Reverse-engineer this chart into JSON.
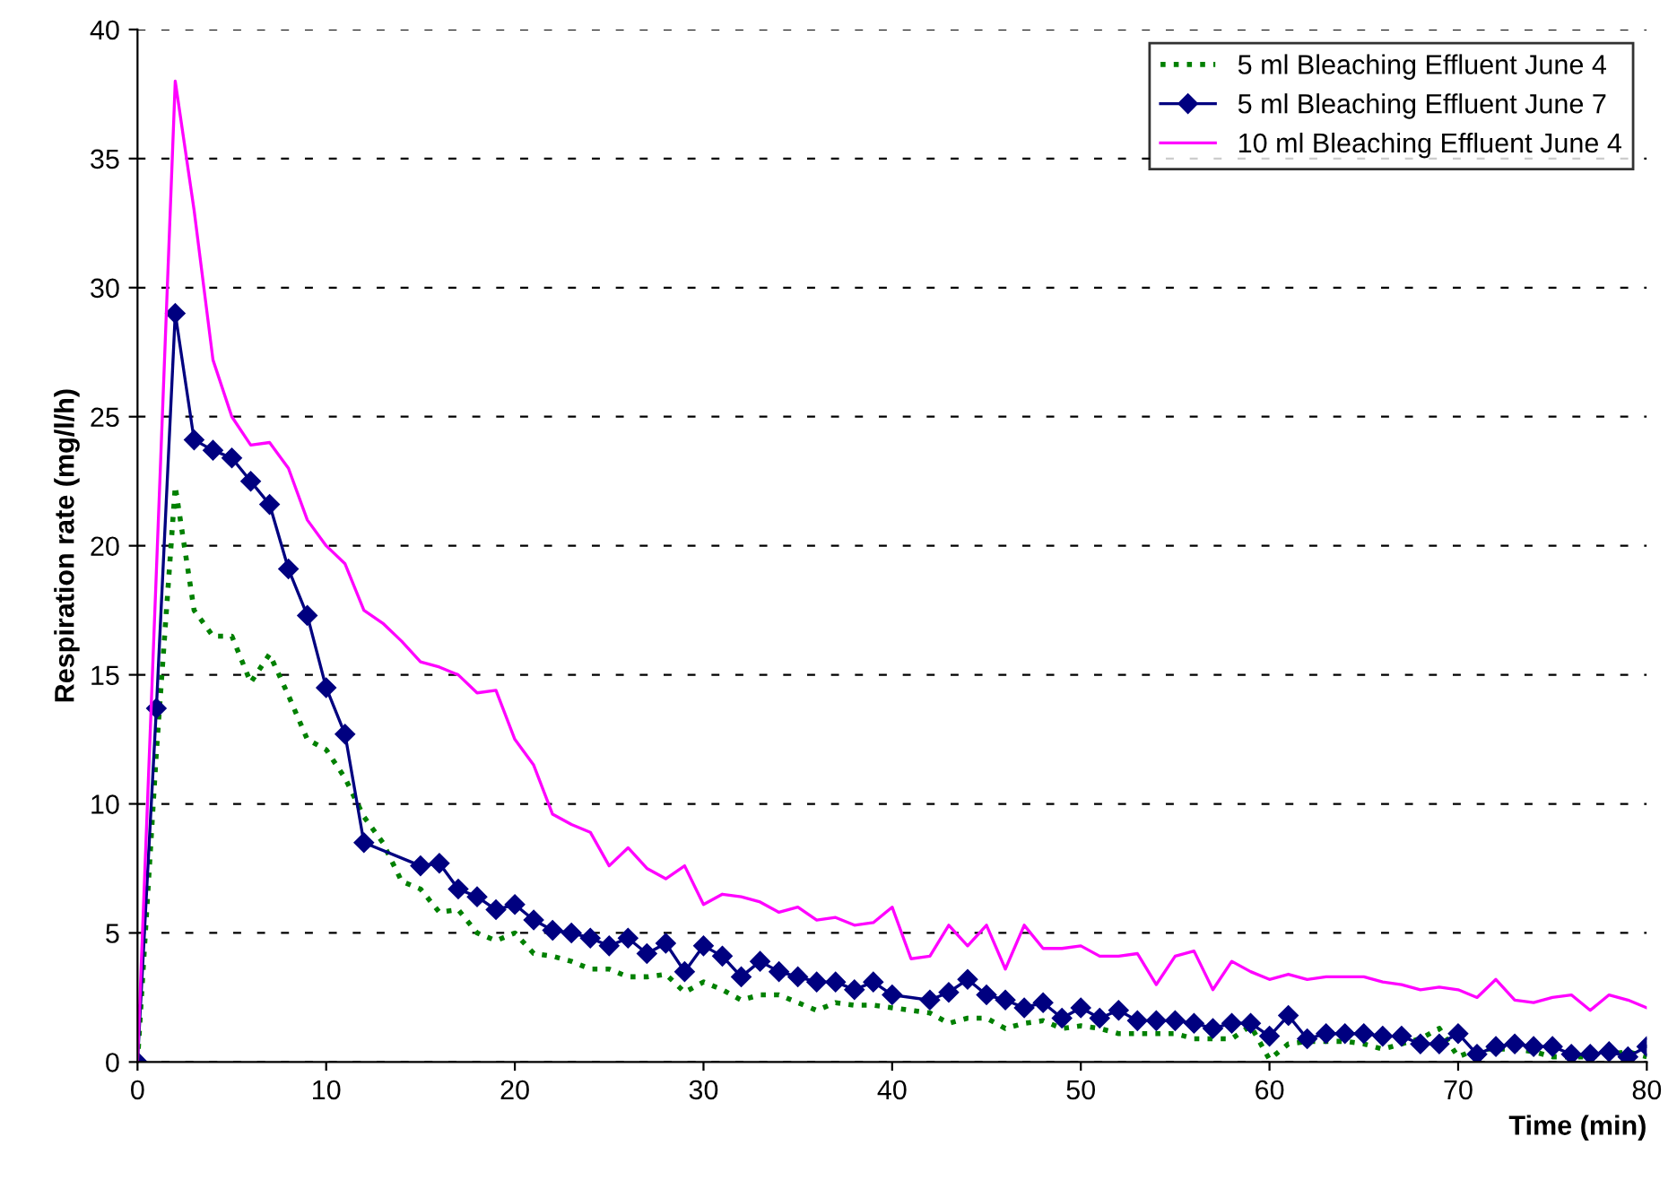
{
  "chart_data": {
    "type": "line",
    "xlabel": "Time (min)",
    "ylabel": "Respiration rate (mg/l/h)",
    "xlim": [
      0,
      80
    ],
    "xticks": [
      0,
      10,
      20,
      30,
      40,
      50,
      60,
      70,
      80
    ],
    "ylim": [
      0,
      40
    ],
    "yticks": [
      0,
      5,
      10,
      15,
      20,
      25,
      30,
      35,
      40
    ],
    "grid": "y",
    "legend": "top right",
    "series": [
      {
        "name": "5 ml Bleaching Effluent June 4",
        "color": "#008000",
        "line_style": "dotted",
        "marker": "none",
        "x": [
          0,
          1,
          2,
          3,
          4,
          5,
          6,
          7,
          8,
          9,
          10,
          11,
          12,
          13,
          14,
          15,
          16,
          17,
          18,
          19,
          20,
          21,
          22,
          23,
          24,
          25,
          26,
          27,
          28,
          29,
          30,
          31,
          32,
          33,
          34,
          35,
          36,
          37,
          38,
          39,
          40,
          41,
          42,
          43,
          44,
          45,
          46,
          47,
          48,
          49,
          50,
          51,
          52,
          53,
          54,
          55,
          56,
          57,
          58,
          59,
          60,
          61,
          62,
          63,
          64,
          65,
          66,
          67,
          68,
          69,
          70,
          71,
          72,
          73,
          74,
          75,
          76,
          77,
          78,
          79,
          80
        ],
        "values": [
          0,
          12,
          22.3,
          17.5,
          16.5,
          16.5,
          14.7,
          15.8,
          14.2,
          12.5,
          12.1,
          11,
          9.5,
          8.5,
          7,
          6.7,
          5.8,
          5.9,
          5,
          4.7,
          5,
          4.2,
          4.1,
          3.9,
          3.6,
          3.6,
          3.3,
          3.3,
          3.4,
          2.7,
          3.1,
          2.8,
          2.4,
          2.6,
          2.6,
          2.3,
          2,
          2.3,
          2.2,
          2.2,
          2.1,
          2,
          1.9,
          1.5,
          1.7,
          1.7,
          1.3,
          1.5,
          1.6,
          1.3,
          1.4,
          1.3,
          1.1,
          1.1,
          1.1,
          1.1,
          0.9,
          0.9,
          0.9,
          1.4,
          0.1,
          0.7,
          0.8,
          0.8,
          0.8,
          0.7,
          0.5,
          0.7,
          0.9,
          1.3,
          0.2,
          0.5,
          0.5,
          0.5,
          0.4,
          0.2,
          0.2,
          0.2,
          0.3,
          0.4,
          0.2
        ]
      },
      {
        "name": "5 ml Bleaching Effluent June 7",
        "color": "#000080",
        "line_style": "solid",
        "marker": "diamond",
        "x": [
          0,
          1,
          2,
          3,
          4,
          5,
          6,
          7,
          8,
          9,
          10,
          11,
          12,
          15,
          16,
          17,
          18,
          19,
          20,
          21,
          22,
          23,
          24,
          25,
          26,
          27,
          28,
          29,
          30,
          31,
          32,
          33,
          34,
          35,
          36,
          37,
          38,
          39,
          40,
          42,
          43,
          44,
          45,
          46,
          47,
          48,
          49,
          50,
          51,
          52,
          53,
          54,
          55,
          56,
          57,
          58,
          59,
          60,
          61,
          62,
          63,
          64,
          65,
          66,
          67,
          68,
          69,
          70,
          71,
          72,
          73,
          74,
          75,
          76,
          77,
          78,
          79,
          80
        ],
        "values": [
          0,
          13.7,
          29,
          24.1,
          23.7,
          23.4,
          22.5,
          21.6,
          19.1,
          17.3,
          14.5,
          12.7,
          8.5,
          7.6,
          7.7,
          6.7,
          6.4,
          5.9,
          6.1,
          5.5,
          5.1,
          5,
          4.8,
          4.5,
          4.8,
          4.2,
          4.6,
          3.5,
          4.5,
          4.1,
          3.3,
          3.9,
          3.5,
          3.3,
          3.1,
          3.1,
          2.8,
          3.1,
          2.6,
          2.4,
          2.7,
          3.2,
          2.6,
          2.4,
          2.1,
          2.3,
          1.7,
          2.1,
          1.7,
          2,
          1.6,
          1.6,
          1.6,
          1.5,
          1.3,
          1.5,
          1.5,
          1,
          1.8,
          0.9,
          1.1,
          1.1,
          1.1,
          1,
          1,
          0.7,
          0.7,
          1.1,
          0.3,
          0.6,
          0.7,
          0.6,
          0.6,
          0.3,
          0.3,
          0.4,
          0.2,
          0.6
        ]
      },
      {
        "name": "10 ml Bleaching Effluent June 4",
        "color": "#ff00ff",
        "line_style": "solid",
        "marker": "none",
        "x": [
          0,
          2,
          3,
          4,
          5,
          6,
          7,
          8,
          9,
          10,
          11,
          12,
          13,
          14,
          15,
          16,
          17,
          18,
          19,
          20,
          21,
          22,
          23,
          24,
          25,
          26,
          27,
          28,
          29,
          30,
          31,
          32,
          33,
          34,
          35,
          36,
          37,
          38,
          39,
          40,
          41,
          42,
          43,
          44,
          45,
          46,
          47,
          48,
          49,
          50,
          51,
          52,
          53,
          54,
          55,
          56,
          57,
          58,
          59,
          60,
          61,
          62,
          63,
          64,
          65,
          66,
          67,
          68,
          69,
          70,
          71,
          72,
          73,
          74,
          75,
          76,
          77,
          78,
          79,
          80
        ],
        "values": [
          0,
          38,
          33,
          27.2,
          25,
          23.9,
          24,
          23,
          21,
          20,
          19.3,
          17.5,
          17,
          16.3,
          15.5,
          15.3,
          15,
          14.3,
          14.4,
          12.5,
          11.5,
          9.6,
          9.2,
          8.9,
          7.6,
          8.3,
          7.5,
          7.1,
          7.6,
          6.1,
          6.5,
          6.4,
          6.2,
          5.8,
          6,
          5.5,
          5.6,
          5.3,
          5.4,
          6,
          4,
          4.1,
          5.3,
          4.5,
          5.3,
          3.6,
          5.3,
          4.4,
          4.4,
          4.5,
          4.1,
          4.1,
          4.2,
          3,
          4.1,
          4.3,
          2.8,
          3.9,
          3.5,
          3.2,
          3.4,
          3.2,
          3.3,
          3.3,
          3.3,
          3.1,
          3,
          2.8,
          2.9,
          2.8,
          2.5,
          3.2,
          2.4,
          2.3,
          2.5,
          2.6,
          2,
          2.6,
          2.4,
          2.1
        ]
      }
    ]
  }
}
